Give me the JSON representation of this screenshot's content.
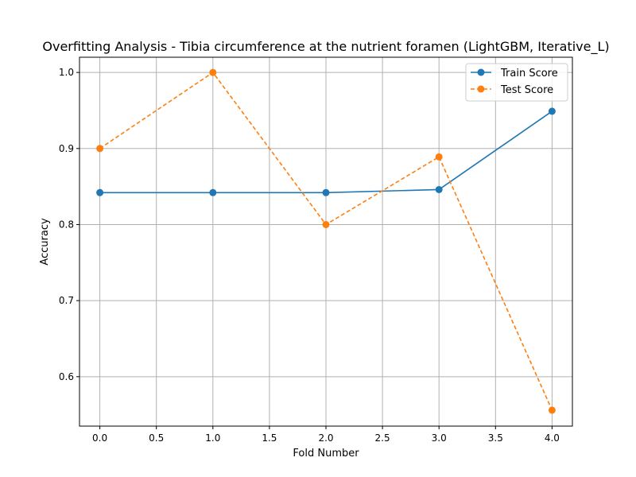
{
  "chart_data": {
    "type": "line",
    "title": "Overfitting Analysis - Tibia circumference at the nutrient foramen (LightGBM, Iterative_L)",
    "xlabel": "Fold Number",
    "ylabel": "Accuracy",
    "xlim": [
      -0.18,
      4.18
    ],
    "ylim": [
      0.535,
      1.02
    ],
    "xticks": [
      0.0,
      0.5,
      1.0,
      1.5,
      2.0,
      2.5,
      3.0,
      3.5,
      4.0
    ],
    "xtick_labels": [
      "0.0",
      "0.5",
      "1.0",
      "1.5",
      "2.0",
      "2.5",
      "3.0",
      "3.5",
      "4.0"
    ],
    "yticks": [
      0.6,
      0.7,
      0.8,
      0.9,
      1.0
    ],
    "ytick_labels": [
      "0.6",
      "0.7",
      "0.8",
      "0.9",
      "1.0"
    ],
    "grid": true,
    "legend_position": "top-right",
    "x": [
      0,
      1,
      2,
      3,
      4
    ],
    "series": [
      {
        "name": "Train Score",
        "values": [
          0.842,
          0.842,
          0.842,
          0.846,
          0.949
        ],
        "color": "#1f77b4",
        "line_style": "solid",
        "marker": "circle"
      },
      {
        "name": "Test Score",
        "values": [
          0.9,
          1.0,
          0.8,
          0.889,
          0.556
        ],
        "color": "#ff7f0e",
        "line_style": "dashed",
        "marker": "circle"
      }
    ]
  }
}
